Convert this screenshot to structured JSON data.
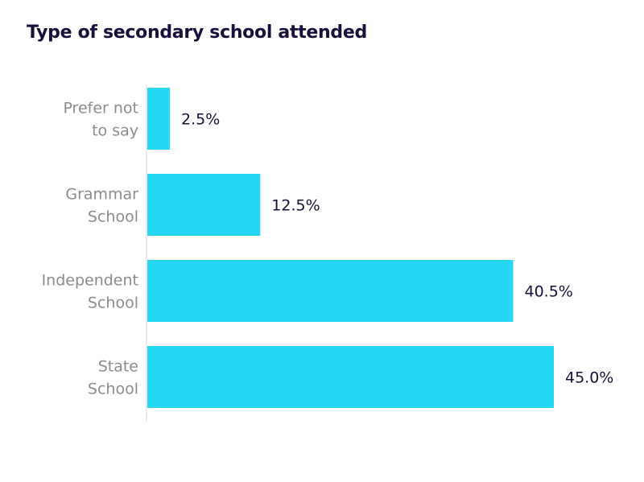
{
  "chart_data": {
    "type": "bar",
    "orientation": "horizontal",
    "title": "Type of secondary school attended",
    "xlabel": "",
    "ylabel": "",
    "categories": [
      [
        "Prefer not",
        "to say"
      ],
      [
        "Grammar",
        "School"
      ],
      [
        "Independent",
        "School"
      ],
      [
        "State",
        "School"
      ]
    ],
    "values": [
      2.5,
      12.5,
      40.5,
      45.0
    ],
    "value_labels": [
      "2.5%",
      "12.5%",
      "40.5%",
      "45.0%"
    ],
    "xlim": [
      0,
      50
    ],
    "grid": false,
    "legend": "none",
    "colors": {
      "bar": "#25d7f3",
      "title": "#1a0f3c",
      "value_label": "#1a0f3c",
      "category_label": "#8c8c8c",
      "axis_line": "#d9d9d9"
    }
  }
}
